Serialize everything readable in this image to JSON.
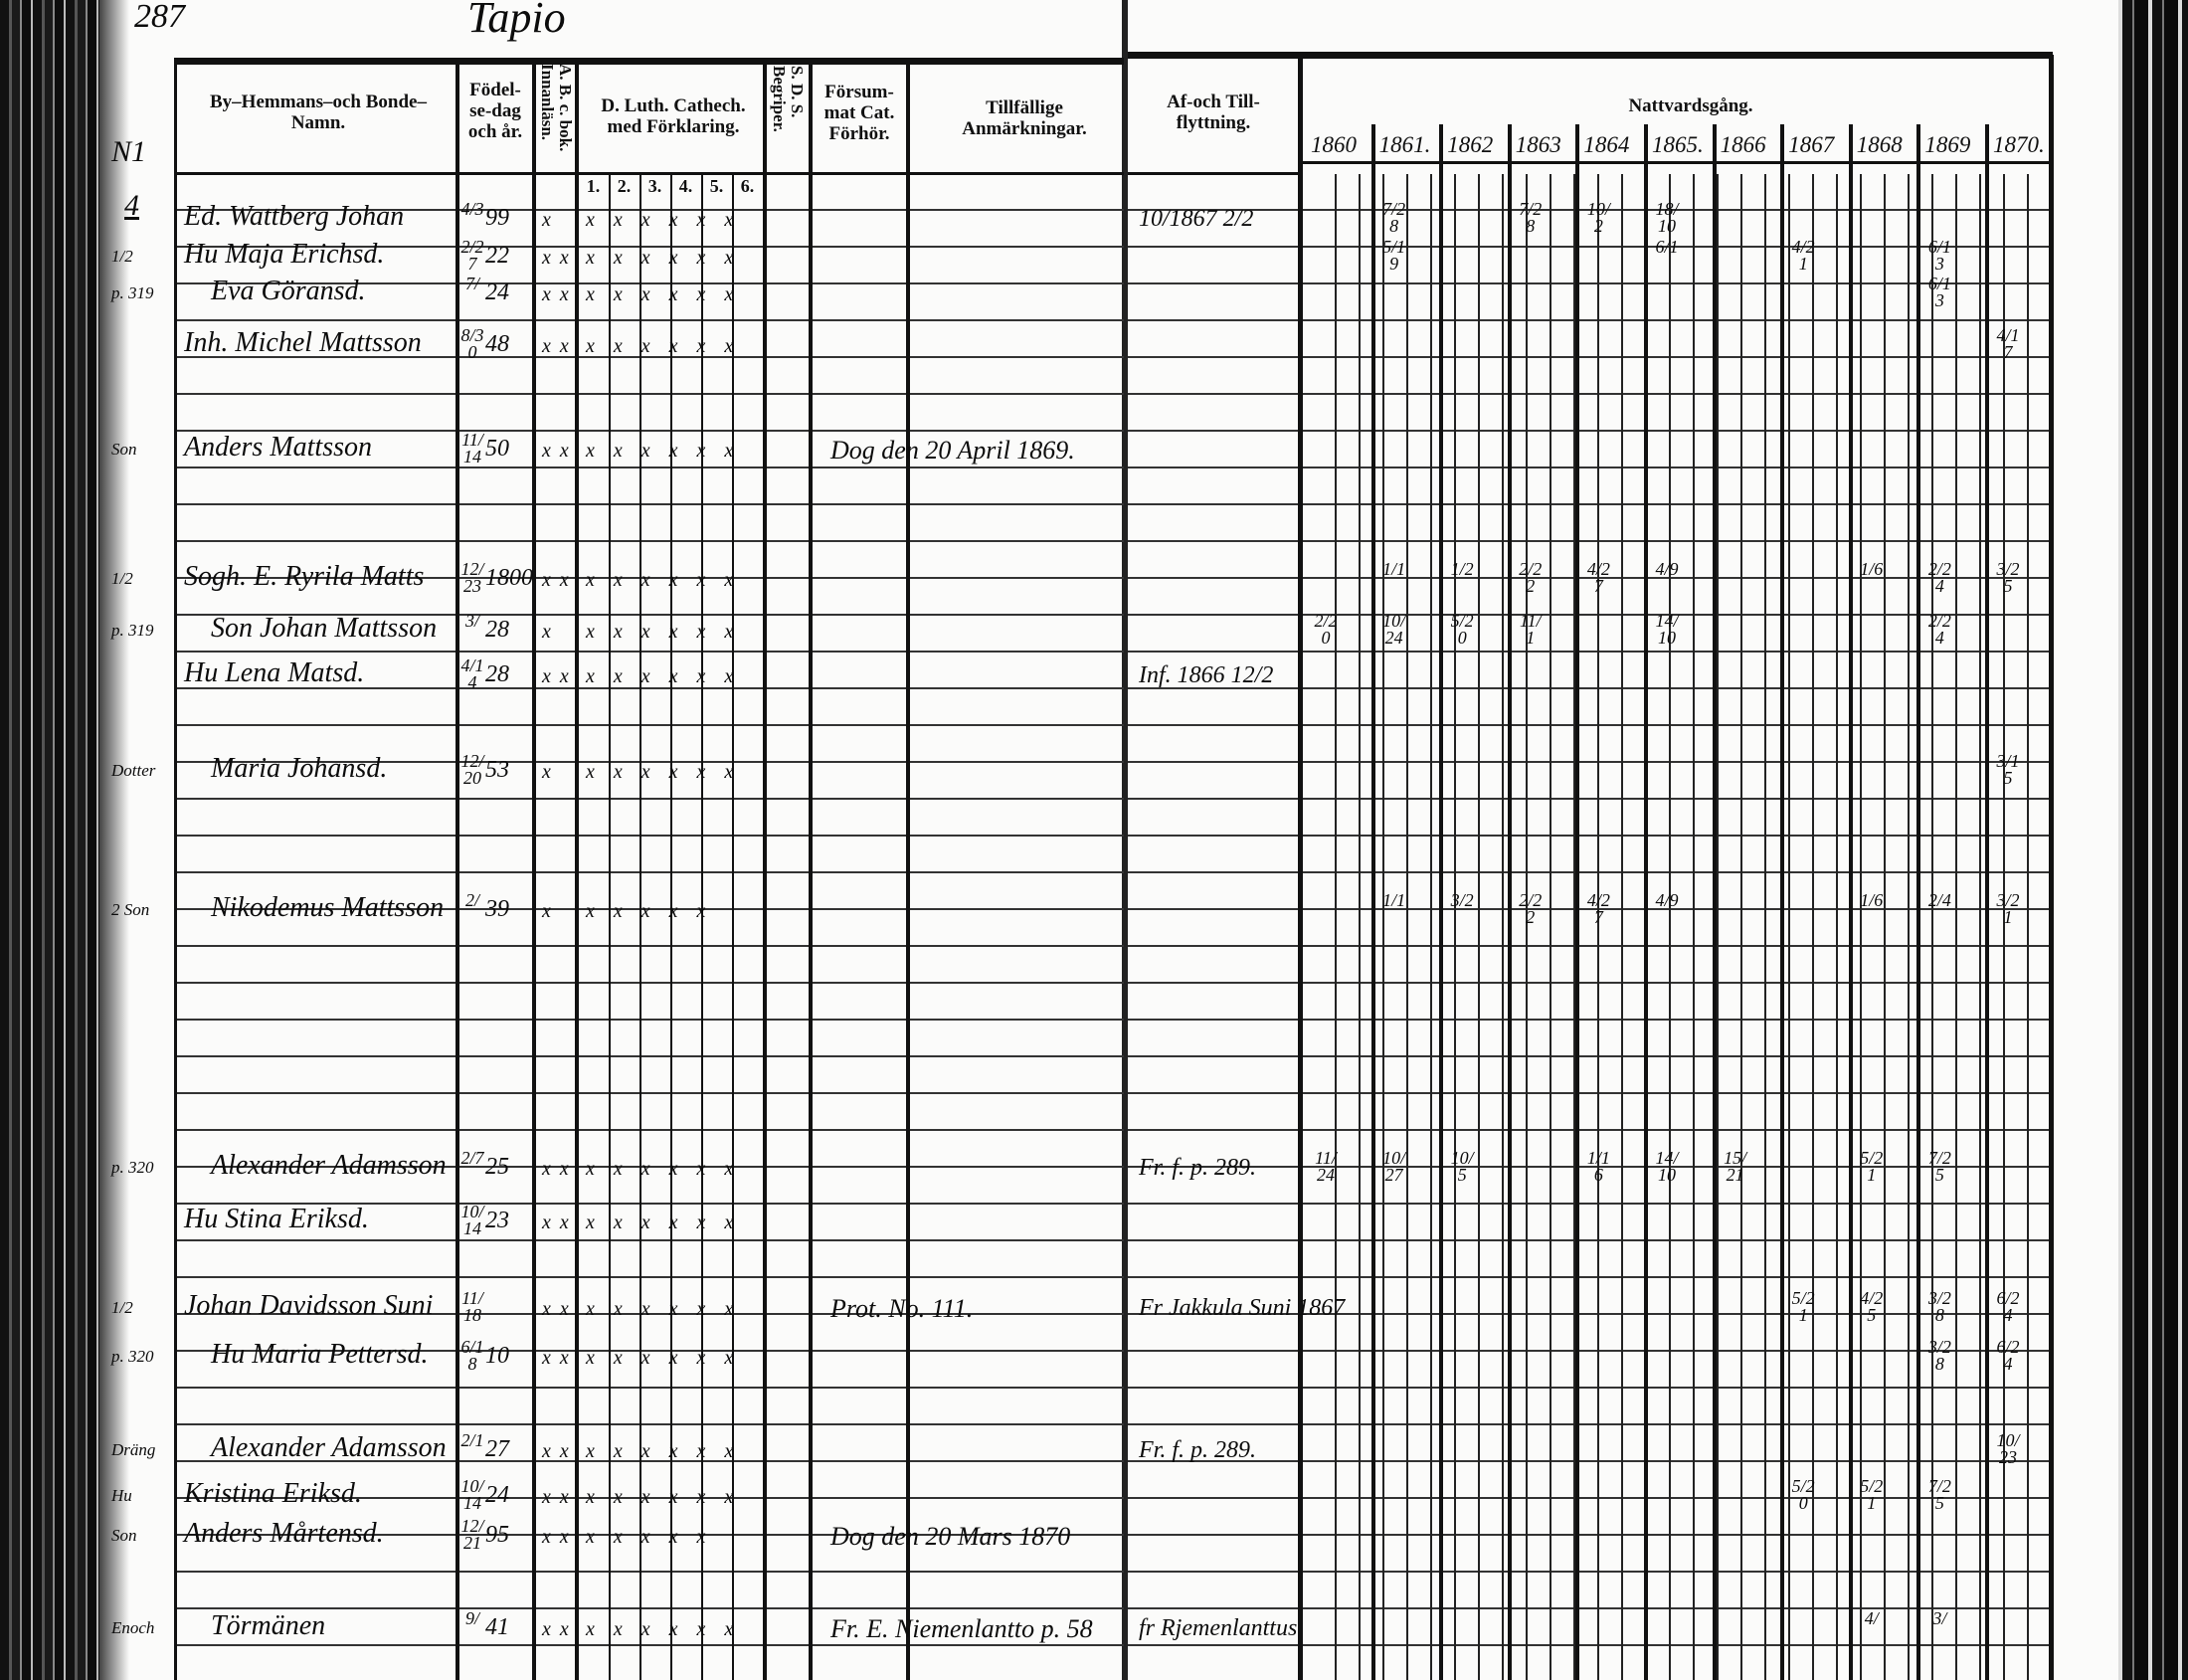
{
  "page_number": "287",
  "village": "Tapio",
  "margin_note_top": "N1",
  "margin_note_num": "4",
  "headers": {
    "name": "By–Hemmans–och Bonde–Namn.",
    "birth": "Födel-se-dag och år.",
    "abc": "A. B. c. bok. Innanläsn.",
    "luth": "D. Luth. Cathech. med Förklaring.",
    "luth_sub": [
      "1.",
      "2.",
      "3.",
      "4.",
      "5.",
      "6."
    ],
    "sds": "S. D. S. Begriper.",
    "forsummat": "Försum-mat Cat. Förhör.",
    "remarks": "Tillfällige Anmärkningar.",
    "moving": "Af-och Till-flyttning.",
    "communion": "Nattvardsgång."
  },
  "years": [
    "1860",
    "1861.",
    "1862",
    "1863",
    "1864",
    "1865.",
    "1866",
    "1867",
    "1868",
    "1869",
    "1870."
  ],
  "entries": [
    {
      "margin": "",
      "name": "Ed. Wattberg Johan",
      "birth_date": "4/3",
      "birth_year": "99",
      "abc": "x",
      "luth": "x x x x x x",
      "remark": "",
      "moving": "10/1867 2/2",
      "communion": {
        "1": "7/28",
        "3": "7/28",
        "4": "10/2",
        "5": "18/10"
      }
    },
    {
      "margin": "1/2",
      "name": "Hu Maja Erichsd.",
      "birth_date": "2/27",
      "birth_year": "22",
      "abc": "x x",
      "luth": "x x x x x x",
      "remark": "",
      "moving": "",
      "communion": {
        "1": "5/19",
        "5": "6/1",
        "7": "4/21",
        "9": "6/13"
      }
    },
    {
      "margin": "p. 319",
      "name": "Eva Göransd.",
      "birth_date": "7/",
      "birth_year": "24",
      "abc": "x x",
      "luth": "x x x x x x",
      "remark": "",
      "moving": "",
      "communion": {
        "9": "6/13"
      }
    },
    {
      "margin": "",
      "name": "Inh. Michel Mattsson",
      "birth_date": "8/30",
      "birth_year": "48",
      "abc": "x x",
      "luth": "x x x x x x",
      "remark": "",
      "moving": "",
      "communion": {
        "10": "4/17"
      }
    },
    {
      "margin": "Son",
      "name": "Anders Mattsson",
      "birth_date": "11/14",
      "birth_year": "50",
      "abc": "x x",
      "luth": "x x x x x x",
      "remark": "Dog den 20 April 1869.",
      "moving": "",
      "communion": {}
    },
    {
      "margin": "1/2",
      "name": "Sogh. E. Ryrila Matts",
      "birth_date": "12/23",
      "birth_year": "1800",
      "abc": "x x",
      "luth": "x x x x x x",
      "remark": "",
      "moving": "",
      "communion": {
        "1": "1/1",
        "2": "1/2",
        "3": "2/22",
        "4": "4/27",
        "5": "4/9",
        "8": "1/6",
        "9": "2/24",
        "10": "3/25"
      }
    },
    {
      "margin": "p. 319",
      "name": "Son Johan Mattsson",
      "birth_date": "3/",
      "birth_year": "28",
      "abc": "x",
      "luth": "x x x x x x",
      "remark": "",
      "moving": "",
      "communion": {
        "0": "2/20",
        "1": "10/24",
        "2": "5/20",
        "3": "11/1",
        "5": "14/10",
        "9": "2/24"
      }
    },
    {
      "margin": "",
      "name": "Hu Lena Matsd.",
      "birth_date": "4/14",
      "birth_year": "28",
      "abc": "x x",
      "luth": "x x x x x x",
      "remark": "",
      "moving": "Inf. 1866 12/2",
      "communion": {}
    },
    {
      "margin": "Dotter",
      "name": "Maria Johansd.",
      "birth_date": "12/20",
      "birth_year": "53",
      "abc": "x",
      "luth": "x x x x x x",
      "remark": "",
      "moving": "",
      "communion": {
        "10": "3/15"
      }
    },
    {
      "margin": "2 Son",
      "name": "Nikodemus Mattsson",
      "birth_date": "2/",
      "birth_year": "39",
      "abc": "x",
      "luth": "x x x x x",
      "remark": "",
      "moving": "",
      "communion": {
        "1": "1/1",
        "2": "3/2",
        "3": "2/22",
        "4": "4/27",
        "5": "4/9",
        "8": "1/6",
        "9": "2/4",
        "10": "3/21"
      }
    },
    {
      "margin": "p. 320",
      "name": "Alexander Adamsson",
      "birth_date": "2/7",
      "birth_year": "25",
      "abc": "x x",
      "luth": "x x x x x x",
      "remark": "",
      "moving": "Fr. f. p. 289.",
      "communion": {
        "0": "11/24",
        "1": "10/27",
        "2": "10/5",
        "4": "1/16",
        "5": "14/10",
        "6": "15/21",
        "8": "5/21",
        "9": "7/25"
      }
    },
    {
      "margin": "",
      "name": "Hu Stina Eriksd.",
      "birth_date": "10/14",
      "birth_year": "23",
      "abc": "x x",
      "luth": "x x x x x x",
      "remark": "",
      "moving": "",
      "communion": {}
    },
    {
      "margin": "1/2",
      "name": "Johan Davidsson Suni",
      "birth_date": "11/18",
      "birth_year": "",
      "abc": "x x",
      "luth": "x x x x x x",
      "remark": "Prot. No. 111.",
      "moving": "Fr Jakkula Suni 1867",
      "communion": {
        "7": "5/21",
        "8": "4/25",
        "9": "3/28",
        "10": "6/24"
      }
    },
    {
      "margin": "p. 320",
      "name": "Hu Maria Pettersd.",
      "birth_date": "6/18",
      "birth_year": "10",
      "abc": "x x",
      "luth": "x x x x x x",
      "remark": "",
      "moving": "",
      "communion": {
        "9": "3/28",
        "10": "6/24"
      }
    },
    {
      "margin": "Dräng",
      "name": "Alexander Adamsson",
      "birth_date": "2/1",
      "birth_year": "27",
      "abc": "x x",
      "luth": "x x x x x x",
      "remark": "",
      "moving": "Fr. f. p. 289.",
      "communion": {
        "10": "10/23"
      }
    },
    {
      "margin": "Hu",
      "name": "Kristina Eriksd.",
      "birth_date": "10/14",
      "birth_year": "24",
      "abc": "x x",
      "luth": "x x x x x x",
      "remark": "",
      "moving": "",
      "communion": {
        "7": "5/20",
        "8": "5/21",
        "9": "7/25"
      }
    },
    {
      "margin": "Son",
      "name": "Anders Mårtensd.",
      "birth_date": "12/21",
      "birth_year": "95",
      "abc": "x x",
      "luth": "x x x x x",
      "remark": "Dog den 20 Mars 1870",
      "moving": "",
      "communion": {}
    },
    {
      "margin": "Enoch",
      "name": "Törmänen",
      "birth_date": "9/",
      "birth_year": "41",
      "abc": "x x",
      "luth": "x x x x x x",
      "remark": "Fr. E. Niemenlantto p. 58",
      "moving": "fr Rjemenlanttus",
      "communion": {
        "8": "4/",
        "9": "3/"
      }
    }
  ]
}
